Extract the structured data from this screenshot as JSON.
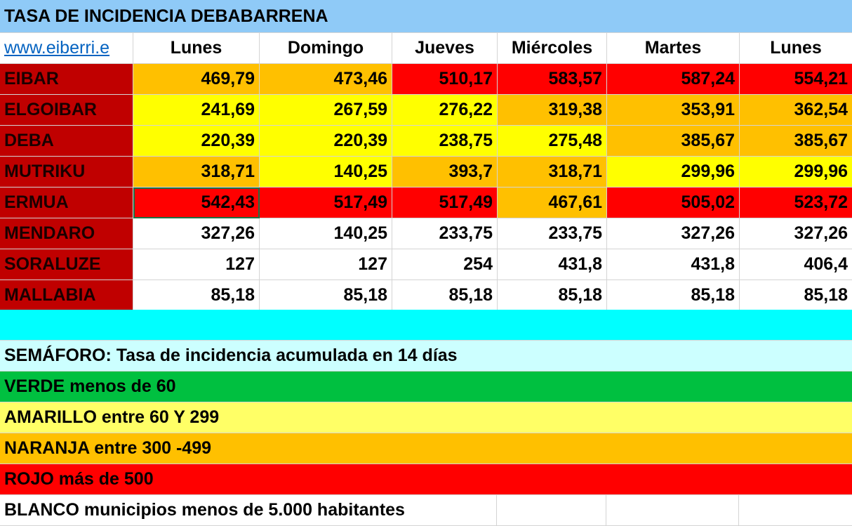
{
  "title": "TASA DE INCIDENCIA DEBABARRENA",
  "link_text": "www.eiberri.e",
  "colors": {
    "title_bg": "#8fcaf7",
    "municipality_bg": "#c00000",
    "red": "#ff0000",
    "orange": "#ffc000",
    "yellow": "#ffff00",
    "white": "#ffffff",
    "separator": "#00ffff",
    "semaforo_bg": "#ccffff",
    "verde_bg": "#00c040",
    "amarillo_bg": "#ffff66",
    "naranja_bg": "#ffc000",
    "rojo_bg": "#ff0000"
  },
  "chart_data": {
    "type": "table",
    "title": "TASA DE INCIDENCIA DEBABARRENA",
    "columns": [
      "Lunes",
      "Domingo",
      "Jueves",
      "Miércoles",
      "Martes",
      "Lunes"
    ],
    "rows": [
      {
        "municipality": "EIBAR",
        "values": [
          "469,79",
          "473,46",
          "510,17",
          "583,57",
          "587,24",
          "554,21"
        ],
        "colors": [
          "orange",
          "orange",
          "red",
          "red",
          "red",
          "red"
        ]
      },
      {
        "municipality": "ELGOIBAR",
        "values": [
          "241,69",
          "267,59",
          "276,22",
          "319,38",
          "353,91",
          "362,54"
        ],
        "colors": [
          "yellow",
          "yellow",
          "yellow",
          "orange",
          "orange",
          "orange"
        ]
      },
      {
        "municipality": "DEBA",
        "values": [
          "220,39",
          "220,39",
          "238,75",
          "275,48",
          "385,67",
          "385,67"
        ],
        "colors": [
          "yellow",
          "yellow",
          "yellow",
          "yellow",
          "orange",
          "orange"
        ]
      },
      {
        "municipality": "MUTRIKU",
        "values": [
          "318,71",
          "140,25",
          "393,7",
          "318,71",
          "299,96",
          "299,96"
        ],
        "colors": [
          "orange",
          "yellow",
          "orange",
          "orange",
          "yellow",
          "yellow"
        ]
      },
      {
        "municipality": "ERMUA",
        "values": [
          "542,43",
          "517,49",
          "517,49",
          "467,61",
          "505,02",
          "523,72"
        ],
        "colors": [
          "red",
          "red",
          "red",
          "orange",
          "red",
          "red"
        ]
      },
      {
        "municipality": "MENDARO",
        "values": [
          "327,26",
          "140,25",
          "233,75",
          "233,75",
          "327,26",
          "327,26"
        ],
        "colors": [
          "white",
          "white",
          "white",
          "white",
          "white",
          "white"
        ]
      },
      {
        "municipality": "SORALUZE",
        "values": [
          "127",
          "127",
          "254",
          "431,8",
          "431,8",
          "406,4"
        ],
        "colors": [
          "white",
          "white",
          "white",
          "white",
          "white",
          "white"
        ]
      },
      {
        "municipality": "MALLABIA",
        "values": [
          "85,18",
          "85,18",
          "85,18",
          "85,18",
          "85,18",
          "85,18"
        ],
        "colors": [
          "white",
          "white",
          "white",
          "white",
          "white",
          "white"
        ]
      }
    ]
  },
  "legend": {
    "semaforo": "SEMÁFORO:  Tasa de incidencia acumulada en 14 días",
    "verde": "VERDE menos de 60",
    "amarillo": "AMARILLO entre 60 Y 299",
    "naranja": "NARANJA entre 300 -499",
    "rojo": "ROJO más de 500",
    "blanco": "BLANCO municipios menos de 5.000 habitantes"
  }
}
